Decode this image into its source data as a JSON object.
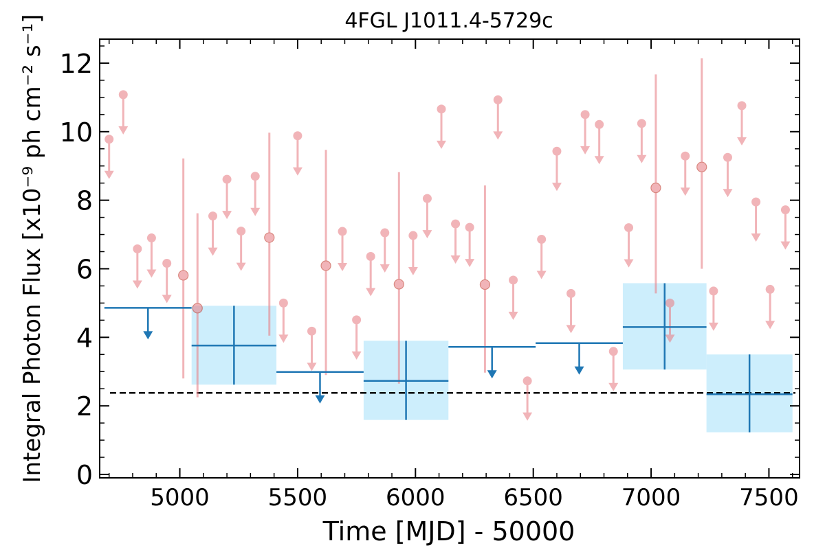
{
  "chart_data": {
    "type": "scatter",
    "title": "4FGL J1011.4-5729c",
    "xlabel": "Time [MJD] - 50000",
    "ylabel": "Integral Photon Flux [x10⁻⁹ ph cm⁻² s⁻¹]",
    "xlim": [
      4660,
      7630
    ],
    "ylim": [
      -0.1,
      12.7
    ],
    "xticks": [
      5000,
      5500,
      6000,
      6500,
      7000,
      7500
    ],
    "xtick_labels": [
      "5000",
      "5500",
      "6000",
      "6500",
      "7000",
      "7500"
    ],
    "yticks": [
      0,
      2,
      4,
      6,
      8,
      10,
      12
    ],
    "ytick_labels": [
      "0",
      "2",
      "4",
      "6",
      "8",
      "10",
      "12"
    ],
    "grid": false,
    "reference_line": {
      "y": 2.38,
      "style": "dashed",
      "color": "#000000"
    },
    "colors": {
      "short_bins": "#e8838a",
      "long_bins": "#1f77b4",
      "long_bins_fill": "#cdeefc",
      "reference": "#000000"
    },
    "series": [
      {
        "marker": "circle",
        "color": "#e8838a",
        "upper_limits": [
          {
            "x": 4700,
            "y": 9.78
          },
          {
            "x": 4760,
            "y": 11.08
          },
          {
            "x": 4820,
            "y": 6.58
          },
          {
            "x": 4880,
            "y": 6.9
          },
          {
            "x": 4945,
            "y": 6.16
          },
          {
            "x": 5140,
            "y": 7.54
          },
          {
            "x": 5200,
            "y": 8.61
          },
          {
            "x": 5260,
            "y": 7.1
          },
          {
            "x": 5320,
            "y": 8.7
          },
          {
            "x": 5440,
            "y": 5.0
          },
          {
            "x": 5500,
            "y": 9.88
          },
          {
            "x": 5560,
            "y": 4.18
          },
          {
            "x": 5690,
            "y": 7.09
          },
          {
            "x": 5750,
            "y": 4.51
          },
          {
            "x": 5810,
            "y": 6.36
          },
          {
            "x": 5870,
            "y": 7.05
          },
          {
            "x": 5990,
            "y": 6.97
          },
          {
            "x": 6050,
            "y": 8.05
          },
          {
            "x": 6110,
            "y": 10.66
          },
          {
            "x": 6170,
            "y": 7.31
          },
          {
            "x": 6230,
            "y": 7.21
          },
          {
            "x": 6350,
            "y": 10.93
          },
          {
            "x": 6415,
            "y": 5.67
          },
          {
            "x": 6475,
            "y": 2.73
          },
          {
            "x": 6535,
            "y": 6.86
          },
          {
            "x": 6600,
            "y": 9.43
          },
          {
            "x": 6660,
            "y": 5.28
          },
          {
            "x": 6720,
            "y": 10.5
          },
          {
            "x": 6780,
            "y": 10.21
          },
          {
            "x": 6840,
            "y": 3.59
          },
          {
            "x": 6905,
            "y": 7.2
          },
          {
            "x": 6960,
            "y": 10.24
          },
          {
            "x": 7080,
            "y": 5.0
          },
          {
            "x": 7145,
            "y": 9.29
          },
          {
            "x": 7265,
            "y": 5.35
          },
          {
            "x": 7325,
            "y": 9.25
          },
          {
            "x": 7385,
            "y": 10.76
          },
          {
            "x": 7445,
            "y": 7.95
          },
          {
            "x": 7505,
            "y": 5.4
          },
          {
            "x": 7570,
            "y": 7.72
          }
        ],
        "detections": [
          {
            "x": 5015,
            "y": 5.81,
            "ylo": 2.8,
            "yhi": 9.22
          },
          {
            "x": 5075,
            "y": 4.85,
            "ylo": 2.25,
            "yhi": 7.62
          },
          {
            "x": 5380,
            "y": 6.91,
            "ylo": 4.05,
            "yhi": 9.97
          },
          {
            "x": 5620,
            "y": 6.09,
            "ylo": 2.9,
            "yhi": 9.47
          },
          {
            "x": 5930,
            "y": 5.55,
            "ylo": 2.65,
            "yhi": 8.82
          },
          {
            "x": 6295,
            "y": 5.54,
            "ylo": 2.97,
            "yhi": 8.43
          },
          {
            "x": 7020,
            "y": 8.36,
            "ylo": 5.28,
            "yhi": 11.67
          },
          {
            "x": 7215,
            "y": 8.97,
            "ylo": 6.0,
            "yhi": 12.14
          }
        ]
      },
      {
        "marker": "cross",
        "color": "#1f77b4",
        "upper_limits": [
          {
            "x0": 4680,
            "x1": 5050,
            "y": 4.86
          },
          {
            "x0": 5410,
            "x1": 5780,
            "y": 2.99
          },
          {
            "x0": 6140,
            "x1": 6510,
            "y": 3.72
          },
          {
            "x0": 6510,
            "x1": 6880,
            "y": 3.83
          }
        ],
        "detections": [
          {
            "x0": 5050,
            "x1": 5410,
            "y": 3.76,
            "ylo": 2.62,
            "yhi": 4.92
          },
          {
            "x0": 5780,
            "x1": 6140,
            "y": 2.73,
            "ylo": 1.59,
            "yhi": 3.9
          },
          {
            "x0": 6880,
            "x1": 7235,
            "y": 4.3,
            "ylo": 3.06,
            "yhi": 5.58
          },
          {
            "x0": 7235,
            "x1": 7600,
            "y": 2.34,
            "ylo": 1.23,
            "yhi": 3.5
          }
        ]
      }
    ]
  }
}
